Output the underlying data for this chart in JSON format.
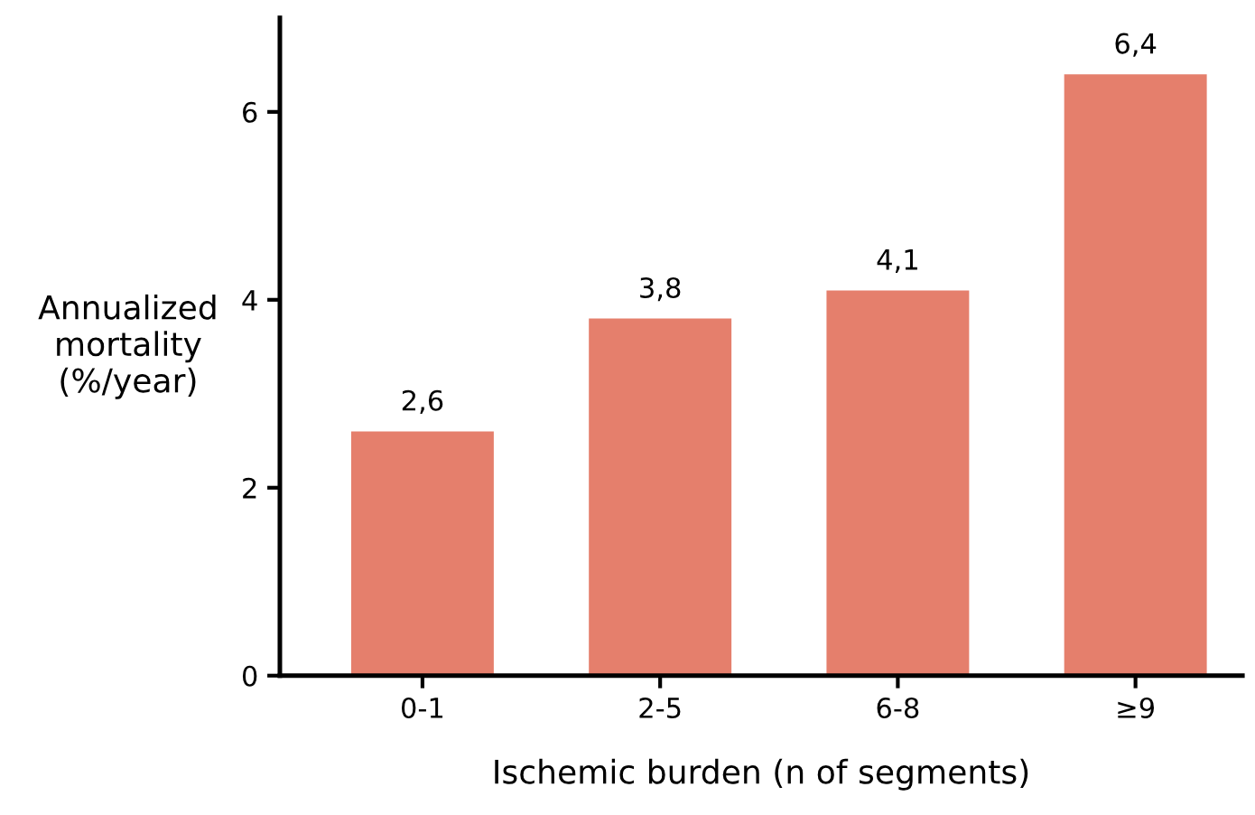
{
  "chart_data": {
    "type": "bar",
    "xlabel": "Ischemic burden (n of segments)",
    "ylabel": "Annualized\nmortality\n(%/year)",
    "categories": [
      "0-1",
      "2-5",
      "6-8",
      "≥9"
    ],
    "values": [
      2.6,
      3.8,
      4.1,
      6.4
    ],
    "value_labels": [
      "2,6",
      "3,8",
      "4,1",
      "6,4"
    ],
    "color": "#e57f6c",
    "ylim": [
      0,
      7
    ],
    "yticks": [
      0,
      2,
      4,
      6
    ],
    "grid": false,
    "legend": false
  }
}
